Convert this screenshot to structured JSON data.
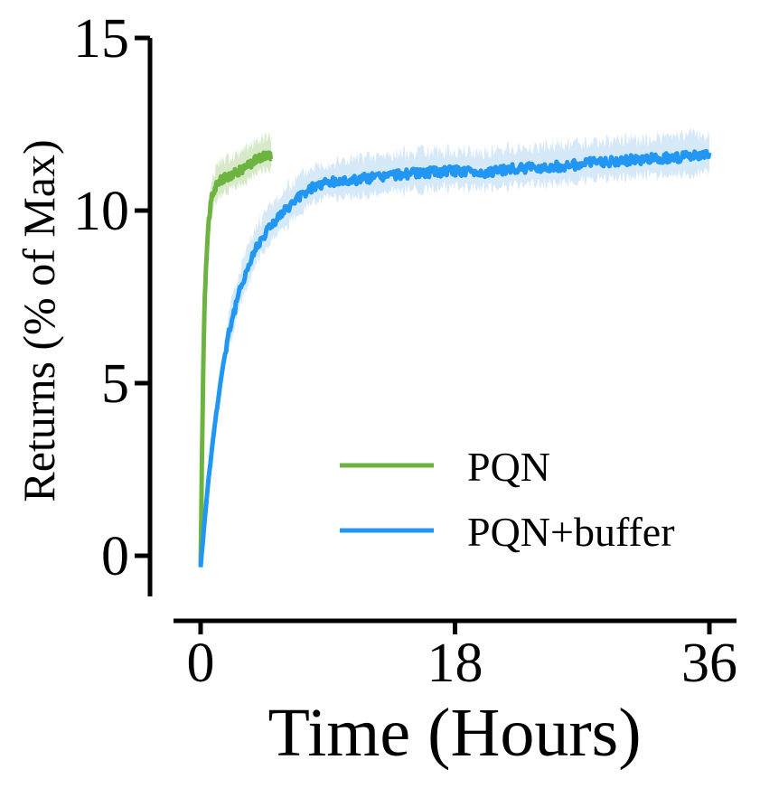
{
  "chart_data": {
    "type": "line",
    "title": "",
    "xlabel": "Time (Hours)",
    "ylabel": "Returns (% of Max)",
    "x_ticks": [
      "0",
      "18",
      "36"
    ],
    "x_tick_values": [
      0,
      18,
      36
    ],
    "y_ticks": [
      "0",
      "5",
      "10",
      "15"
    ],
    "y_tick_values": [
      0,
      5,
      10,
      15
    ],
    "xlim": [
      -1,
      38
    ],
    "ylim": [
      -1.2,
      15
    ],
    "grid": false,
    "legend_position": "lower-right",
    "series": [
      {
        "name": "PQN",
        "color": "#6db33f",
        "band_color": "#cfe6bf",
        "x": [
          0,
          0.1,
          0.2,
          0.3,
          0.4,
          0.5,
          0.6,
          0.7,
          0.8,
          1.0,
          1.2,
          1.5,
          2.0,
          2.5,
          3.0,
          3.5,
          4.0,
          4.5,
          5.0
        ],
        "y": [
          -0.3,
          3.0,
          5.8,
          7.6,
          8.6,
          9.3,
          9.8,
          10.1,
          10.4,
          10.6,
          10.8,
          10.9,
          11.0,
          11.1,
          11.2,
          11.35,
          11.5,
          11.6,
          11.6
        ],
        "band": 0.45
      },
      {
        "name": "PQN+buffer",
        "color": "#2196f3",
        "band_color": "#cfe5f8",
        "x": [
          0,
          0.5,
          1,
          1.5,
          2,
          3,
          4,
          5,
          6,
          7,
          8,
          9,
          10,
          12,
          14,
          16,
          18,
          20,
          22,
          24,
          26,
          28,
          30,
          32,
          34,
          36
        ],
        "y": [
          -0.3,
          2.0,
          3.8,
          5.3,
          6.5,
          8.0,
          9.0,
          9.6,
          10.0,
          10.4,
          10.7,
          10.8,
          10.85,
          10.95,
          11.05,
          11.1,
          11.15,
          11.1,
          11.2,
          11.25,
          11.3,
          11.4,
          11.45,
          11.5,
          11.55,
          11.6
        ],
        "band": 0.5
      }
    ]
  }
}
